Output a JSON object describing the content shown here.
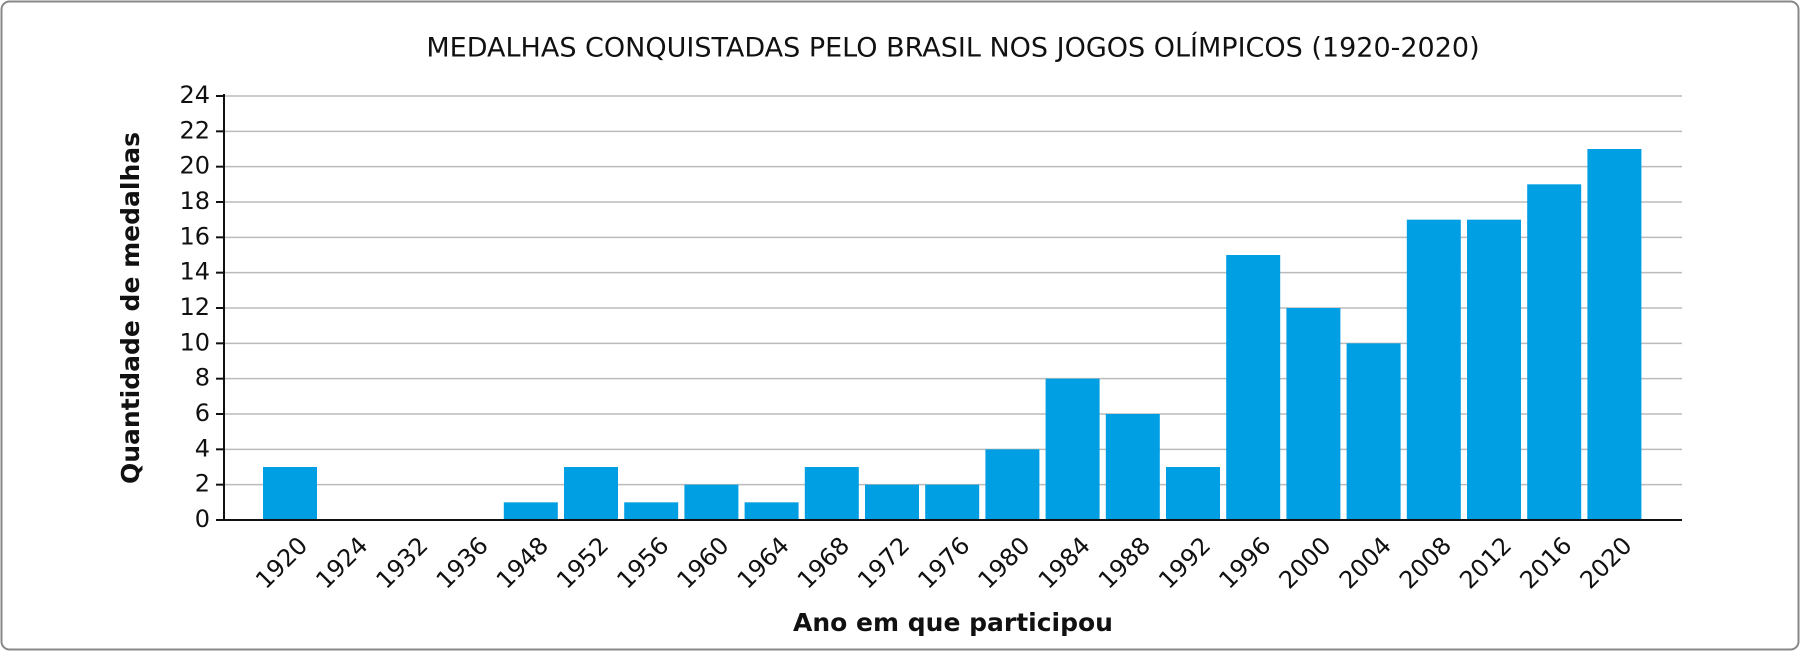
{
  "chart_data": {
    "type": "bar",
    "title": "MEDALHAS CONQUISTADAS PELO BRASIL NOS JOGOS OLÍMPICOS (1920-2020)",
    "x_label": "Ano em que participou",
    "y_label": "Quantidade de medalhas",
    "categories": [
      "1920",
      "1924",
      "1932",
      "1936",
      "1948",
      "1952",
      "1956",
      "1960",
      "1964",
      "1968",
      "1972",
      "1976",
      "1980",
      "1984",
      "1988",
      "1992",
      "1996",
      "2000",
      "2004",
      "2008",
      "2012",
      "2016",
      "2020"
    ],
    "values": [
      3,
      0,
      0,
      0,
      1,
      3,
      1,
      2,
      1,
      3,
      2,
      2,
      4,
      8,
      6,
      3,
      15,
      12,
      10,
      17,
      17,
      19,
      21
    ],
    "color": "#009fe3",
    "ylim": [
      0,
      24
    ],
    "yticks": [
      0,
      2,
      4,
      6,
      8,
      10,
      12,
      14,
      16,
      18,
      20,
      22,
      24
    ],
    "grid": true
  }
}
